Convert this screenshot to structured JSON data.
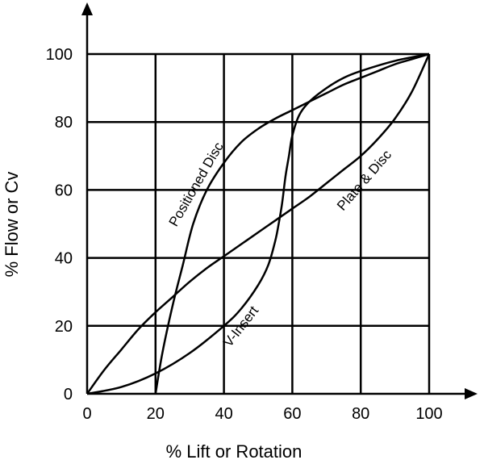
{
  "chart_data": {
    "type": "line",
    "title": "",
    "xlabel": "% Lift or Rotation",
    "ylabel": "% Flow or Cv",
    "xlim": [
      0,
      100
    ],
    "ylim": [
      0,
      100
    ],
    "xticks": [
      "0",
      "20",
      "40",
      "60",
      "80",
      "100"
    ],
    "yticks": [
      "0",
      "20",
      "40",
      "60",
      "80",
      "100"
    ],
    "grid": true,
    "legend": "none",
    "series": [
      {
        "name": "Positioned Disc",
        "x": [
          20,
          22,
          25,
          28,
          31,
          35,
          40,
          45,
          50,
          55,
          60,
          65,
          70,
          75,
          80,
          85,
          90,
          95,
          100
        ],
        "y": [
          0,
          12,
          26,
          38,
          50,
          60,
          68,
          74,
          78,
          81,
          83.5,
          86,
          88.5,
          91,
          93,
          95,
          97,
          98.5,
          100
        ]
      },
      {
        "name": "Plate & Disc",
        "x": [
          0,
          5,
          10,
          15,
          20,
          25,
          30,
          35,
          40,
          45,
          50,
          55,
          60,
          65,
          70,
          75,
          80,
          85,
          90,
          95,
          100
        ],
        "y": [
          0,
          7,
          13,
          19,
          24,
          28.5,
          33,
          37,
          40.5,
          44,
          47.5,
          51,
          54.5,
          58,
          62,
          66,
          70,
          75,
          81,
          89,
          100
        ]
      },
      {
        "name": "V-Insert",
        "x": [
          0,
          10,
          20,
          30,
          40,
          45,
          50,
          53,
          55,
          56,
          57,
          58,
          59,
          60,
          62,
          65,
          70,
          75,
          80,
          90,
          100
        ],
        "y": [
          0,
          2,
          6,
          12,
          20,
          25,
          32,
          38,
          45,
          50,
          56,
          64,
          70,
          76,
          82,
          86,
          90,
          93,
          95,
          98,
          100
        ]
      }
    ]
  }
}
